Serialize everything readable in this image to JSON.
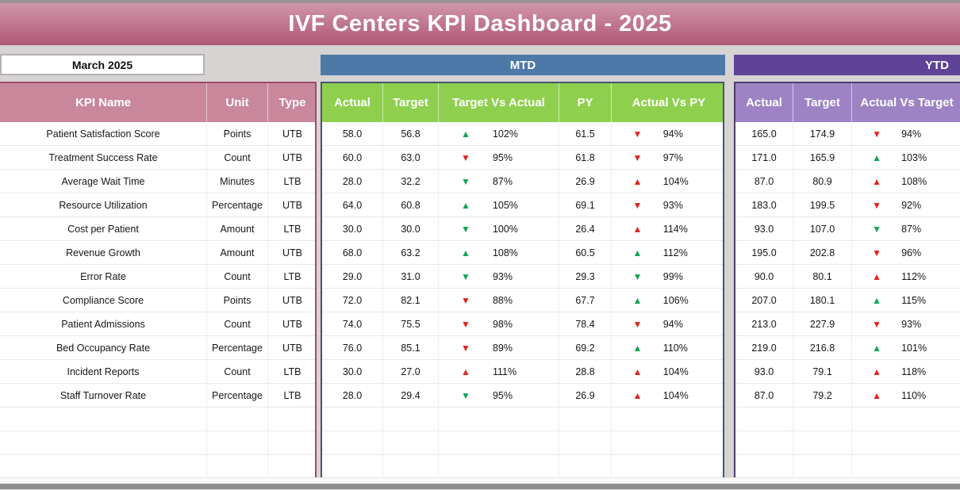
{
  "title": "IVF Centers KPI Dashboard - 2025",
  "period_selector": {
    "value": "March 2025"
  },
  "sections": {
    "mtd_label": "MTD",
    "ytd_label": "YTD"
  },
  "kpi_table": {
    "headers": [
      "KPI Name",
      "Unit",
      "Type"
    ]
  },
  "mtd_table": {
    "headers": [
      "Actual",
      "Target",
      "Target Vs Actual",
      "PY",
      "Actual Vs PY"
    ]
  },
  "ytd_table": {
    "headers": [
      "Actual",
      "Target",
      "Actual Vs Target"
    ]
  },
  "icons": {
    "up": "▲",
    "down": "▼"
  },
  "colors": {
    "banner_pink_top": "#d095a9",
    "banner_pink_bottom": "#b05876",
    "kpi_header_pink": "#c9879c",
    "kpi_border": "#a04c68",
    "mtd_banner_blue": "#4d79a8",
    "mtd_header_green": "#8ed04e",
    "mtd_border": "#45566e",
    "ytd_banner_purple": "#5e4397",
    "ytd_header_purple": "#9d83c4",
    "ytd_border": "#4e3b6d",
    "trend_up_good": "#0ea552",
    "trend_down_bad": "#e3221c"
  },
  "empty_row_count": 3,
  "rows": [
    {
      "kpi": "Patient Satisfaction Score",
      "unit": "Points",
      "type": "UTB",
      "mtd": {
        "actual": "58.0",
        "target": "56.8",
        "target_vs_actual": {
          "dir": "up",
          "tone": "green",
          "value": "102%"
        },
        "py": "61.5",
        "actual_vs_py": {
          "dir": "down",
          "tone": "red",
          "value": "94%"
        }
      },
      "ytd": {
        "actual": "165.0",
        "target": "174.9",
        "actual_vs_target": {
          "dir": "down",
          "tone": "red",
          "value": "94%"
        }
      }
    },
    {
      "kpi": "Treatment Success Rate",
      "unit": "Count",
      "type": "UTB",
      "mtd": {
        "actual": "60.0",
        "target": "63.0",
        "target_vs_actual": {
          "dir": "down",
          "tone": "red",
          "value": "95%"
        },
        "py": "61.8",
        "actual_vs_py": {
          "dir": "down",
          "tone": "red",
          "value": "97%"
        }
      },
      "ytd": {
        "actual": "171.0",
        "target": "165.9",
        "actual_vs_target": {
          "dir": "up",
          "tone": "green",
          "value": "103%"
        }
      }
    },
    {
      "kpi": "Average Wait Time",
      "unit": "Minutes",
      "type": "LTB",
      "mtd": {
        "actual": "28.0",
        "target": "32.2",
        "target_vs_actual": {
          "dir": "down",
          "tone": "green",
          "value": "87%"
        },
        "py": "26.9",
        "actual_vs_py": {
          "dir": "up",
          "tone": "red",
          "value": "104%"
        }
      },
      "ytd": {
        "actual": "87.0",
        "target": "80.9",
        "actual_vs_target": {
          "dir": "up",
          "tone": "red",
          "value": "108%"
        }
      }
    },
    {
      "kpi": "Resource Utilization",
      "unit": "Percentage",
      "type": "UTB",
      "mtd": {
        "actual": "64.0",
        "target": "60.8",
        "target_vs_actual": {
          "dir": "up",
          "tone": "green",
          "value": "105%"
        },
        "py": "69.1",
        "actual_vs_py": {
          "dir": "down",
          "tone": "red",
          "value": "93%"
        }
      },
      "ytd": {
        "actual": "183.0",
        "target": "199.5",
        "actual_vs_target": {
          "dir": "down",
          "tone": "red",
          "value": "92%"
        }
      }
    },
    {
      "kpi": "Cost per Patient",
      "unit": "Amount",
      "type": "LTB",
      "mtd": {
        "actual": "30.0",
        "target": "30.0",
        "target_vs_actual": {
          "dir": "down",
          "tone": "green",
          "value": "100%"
        },
        "py": "26.4",
        "actual_vs_py": {
          "dir": "up",
          "tone": "red",
          "value": "114%"
        }
      },
      "ytd": {
        "actual": "93.0",
        "target": "107.0",
        "actual_vs_target": {
          "dir": "down",
          "tone": "green",
          "value": "87%"
        }
      }
    },
    {
      "kpi": "Revenue Growth",
      "unit": "Amount",
      "type": "UTB",
      "mtd": {
        "actual": "68.0",
        "target": "63.2",
        "target_vs_actual": {
          "dir": "up",
          "tone": "green",
          "value": "108%"
        },
        "py": "60.5",
        "actual_vs_py": {
          "dir": "up",
          "tone": "green",
          "value": "112%"
        }
      },
      "ytd": {
        "actual": "195.0",
        "target": "202.8",
        "actual_vs_target": {
          "dir": "down",
          "tone": "red",
          "value": "96%"
        }
      }
    },
    {
      "kpi": "Error Rate",
      "unit": "Count",
      "type": "LTB",
      "mtd": {
        "actual": "29.0",
        "target": "31.0",
        "target_vs_actual": {
          "dir": "down",
          "tone": "green",
          "value": "93%"
        },
        "py": "29.3",
        "actual_vs_py": {
          "dir": "down",
          "tone": "green",
          "value": "99%"
        }
      },
      "ytd": {
        "actual": "90.0",
        "target": "80.1",
        "actual_vs_target": {
          "dir": "up",
          "tone": "red",
          "value": "112%"
        }
      }
    },
    {
      "kpi": "Compliance Score",
      "unit": "Points",
      "type": "UTB",
      "mtd": {
        "actual": "72.0",
        "target": "82.1",
        "target_vs_actual": {
          "dir": "down",
          "tone": "red",
          "value": "88%"
        },
        "py": "67.7",
        "actual_vs_py": {
          "dir": "up",
          "tone": "green",
          "value": "106%"
        }
      },
      "ytd": {
        "actual": "207.0",
        "target": "180.1",
        "actual_vs_target": {
          "dir": "up",
          "tone": "green",
          "value": "115%"
        }
      }
    },
    {
      "kpi": "Patient Admissions",
      "unit": "Count",
      "type": "UTB",
      "mtd": {
        "actual": "74.0",
        "target": "75.5",
        "target_vs_actual": {
          "dir": "down",
          "tone": "red",
          "value": "98%"
        },
        "py": "78.4",
        "actual_vs_py": {
          "dir": "down",
          "tone": "red",
          "value": "94%"
        }
      },
      "ytd": {
        "actual": "213.0",
        "target": "227.9",
        "actual_vs_target": {
          "dir": "down",
          "tone": "red",
          "value": "93%"
        }
      }
    },
    {
      "kpi": "Bed Occupancy Rate",
      "unit": "Percentage",
      "type": "UTB",
      "mtd": {
        "actual": "76.0",
        "target": "85.1",
        "target_vs_actual": {
          "dir": "down",
          "tone": "red",
          "value": "89%"
        },
        "py": "69.2",
        "actual_vs_py": {
          "dir": "up",
          "tone": "green",
          "value": "110%"
        }
      },
      "ytd": {
        "actual": "219.0",
        "target": "216.8",
        "actual_vs_target": {
          "dir": "up",
          "tone": "green",
          "value": "101%"
        }
      }
    },
    {
      "kpi": "Incident Reports",
      "unit": "Count",
      "type": "LTB",
      "mtd": {
        "actual": "30.0",
        "target": "27.0",
        "target_vs_actual": {
          "dir": "up",
          "tone": "red",
          "value": "111%"
        },
        "py": "28.8",
        "actual_vs_py": {
          "dir": "up",
          "tone": "red",
          "value": "104%"
        }
      },
      "ytd": {
        "actual": "93.0",
        "target": "79.1",
        "actual_vs_target": {
          "dir": "up",
          "tone": "red",
          "value": "118%"
        }
      }
    },
    {
      "kpi": "Staff Turnover Rate",
      "unit": "Percentage",
      "type": "LTB",
      "mtd": {
        "actual": "28.0",
        "target": "29.4",
        "target_vs_actual": {
          "dir": "down",
          "tone": "green",
          "value": "95%"
        },
        "py": "26.9",
        "actual_vs_py": {
          "dir": "up",
          "tone": "red",
          "value": "104%"
        }
      },
      "ytd": {
        "actual": "87.0",
        "target": "79.2",
        "actual_vs_target": {
          "dir": "up",
          "tone": "red",
          "value": "110%"
        }
      }
    }
  ]
}
